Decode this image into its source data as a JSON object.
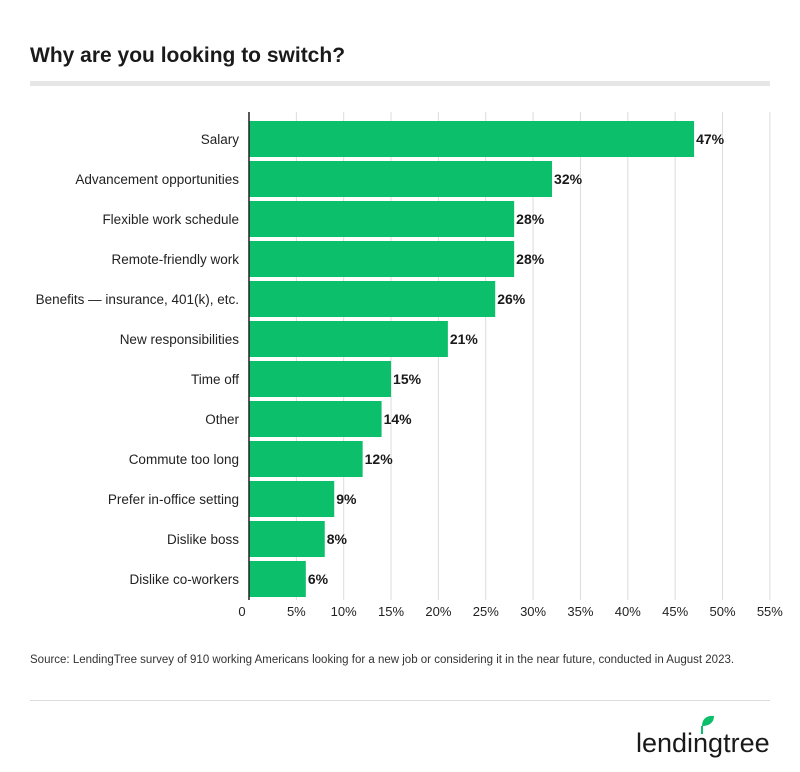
{
  "title": "Why are you looking to switch?",
  "source": "Source: LendingTree survey of 910 working Americans looking for a new job or considering it in the near future, conducted in August 2023.",
  "brand": {
    "name": "lendingtree",
    "color": "#1a1a1a",
    "leaf_color": "#0cbf6a"
  },
  "colors": {
    "bar": "#0cbf6a",
    "grid": "#dcdcdc",
    "axis": "#222222"
  },
  "chart_data": {
    "type": "bar",
    "orientation": "horizontal",
    "categories": [
      "Salary",
      "Advancement opportunities",
      "Flexible work schedule",
      "Remote-friendly work",
      "Benefits — insurance, 401(k), etc.",
      "New responsibilities",
      "Time off",
      "Other",
      "Commute too long",
      "Prefer in-office setting",
      "Dislike boss",
      "Dislike co-workers"
    ],
    "values": [
      47,
      32,
      28,
      28,
      26,
      21,
      15,
      14,
      12,
      9,
      8,
      6
    ],
    "value_labels": [
      "47%",
      "32%",
      "28%",
      "28%",
      "26%",
      "21%",
      "15%",
      "14%",
      "12%",
      "9%",
      "8%",
      "6%"
    ],
    "xlim": [
      0,
      55
    ],
    "xticks": [
      0,
      5,
      10,
      15,
      20,
      25,
      30,
      35,
      40,
      45,
      50,
      55
    ],
    "xtick_labels": [
      "0",
      "5%",
      "10%",
      "15%",
      "20%",
      "25%",
      "30%",
      "35%",
      "40%",
      "45%",
      "50%",
      "55%"
    ],
    "grid": true,
    "legend": "none"
  }
}
